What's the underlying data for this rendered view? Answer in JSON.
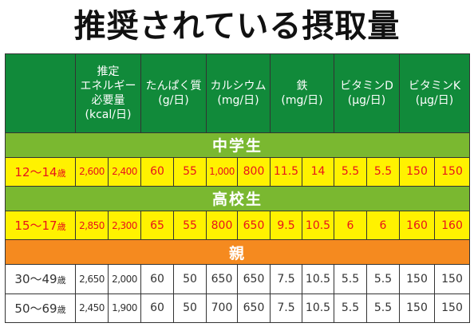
{
  "title": "推奨されている摂取量",
  "headers": {
    "energy": "推定\nエネルギー\n必要量\n(kcal/日)",
    "protein": "たんぱく質\n(g/日)",
    "calcium": "カルシウム\n(mg/日)",
    "iron": "鉄\n(mg/日)",
    "vitd": "ビタミンD\n(μg/日)",
    "vitk": "ビタミンK\n(μg/日)"
  },
  "sections": {
    "middle": "中学生",
    "high": "高校生",
    "parent": "親"
  },
  "rows": {
    "r1": {
      "age": "12〜14",
      "unit": "歳",
      "v": [
        "2,600",
        "2,400",
        "60",
        "55",
        "1,000",
        "800",
        "11.5",
        "14",
        "5.5",
        "5.5",
        "150",
        "150"
      ]
    },
    "r2": {
      "age": "15〜17",
      "unit": "歳",
      "v": [
        "2,850",
        "2,300",
        "65",
        "55",
        "800",
        "650",
        "9.5",
        "10.5",
        "6",
        "6",
        "160",
        "160"
      ]
    },
    "r3": {
      "age": "30〜49",
      "unit": "歳",
      "v": [
        "2,650",
        "2,000",
        "60",
        "50",
        "650",
        "650",
        "7.5",
        "10.5",
        "5.5",
        "5.5",
        "150",
        "150"
      ]
    },
    "r4": {
      "age": "50〜69",
      "unit": "歳",
      "v": [
        "2,450",
        "1,900",
        "60",
        "50",
        "700",
        "650",
        "7.5",
        "10.5",
        "5.5",
        "5.5",
        "150",
        "150"
      ]
    }
  },
  "colors": {
    "header_green": "#118a3a",
    "section_green": "#7ab830",
    "section_orange": "#f58a1f",
    "row_yellow": "#fff200",
    "text_red": "#e8141b"
  }
}
